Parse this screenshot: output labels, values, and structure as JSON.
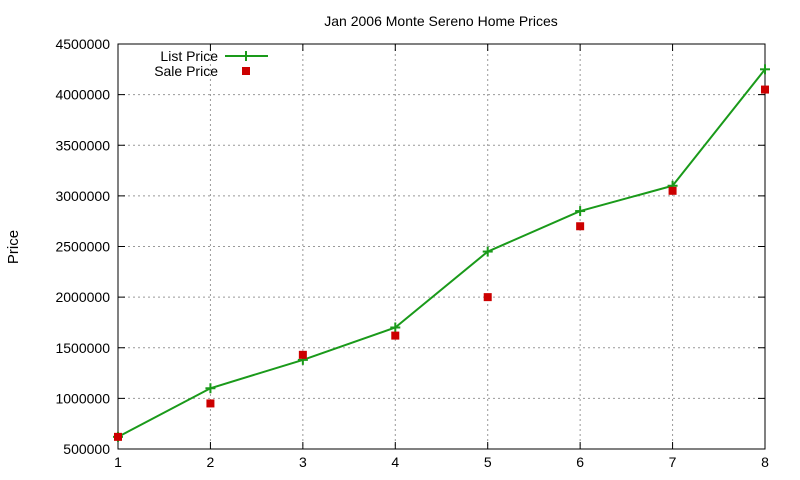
{
  "chart_data": {
    "type": "line",
    "title": "Jan 2006 Monte Sereno Home Prices",
    "xlabel": "",
    "ylabel": "Price",
    "xlim": [
      1,
      8
    ],
    "ylim": [
      500000,
      4500000
    ],
    "x_ticks": [
      "1",
      "2",
      "3",
      "4",
      "5",
      "6",
      "7",
      "8"
    ],
    "y_ticks": [
      "500000",
      "1000000",
      "1500000",
      "2000000",
      "2500000",
      "3000000",
      "3500000",
      "4000000",
      "4500000"
    ],
    "grid": true,
    "legend_position": "top-left",
    "x": [
      1,
      2,
      3,
      4,
      5,
      6,
      7,
      8
    ],
    "series": [
      {
        "name": "List Price",
        "style": "linespoints",
        "marker": "plus",
        "color": "#1a9a1a",
        "values": [
          620000,
          1100000,
          1380000,
          1700000,
          2450000,
          2850000,
          3100000,
          4250000
        ]
      },
      {
        "name": "Sale Price",
        "style": "points",
        "marker": "square",
        "color": "#cc0000",
        "values": [
          620000,
          950000,
          1430000,
          1620000,
          2000000,
          2700000,
          3050000,
          4050000
        ]
      }
    ]
  }
}
